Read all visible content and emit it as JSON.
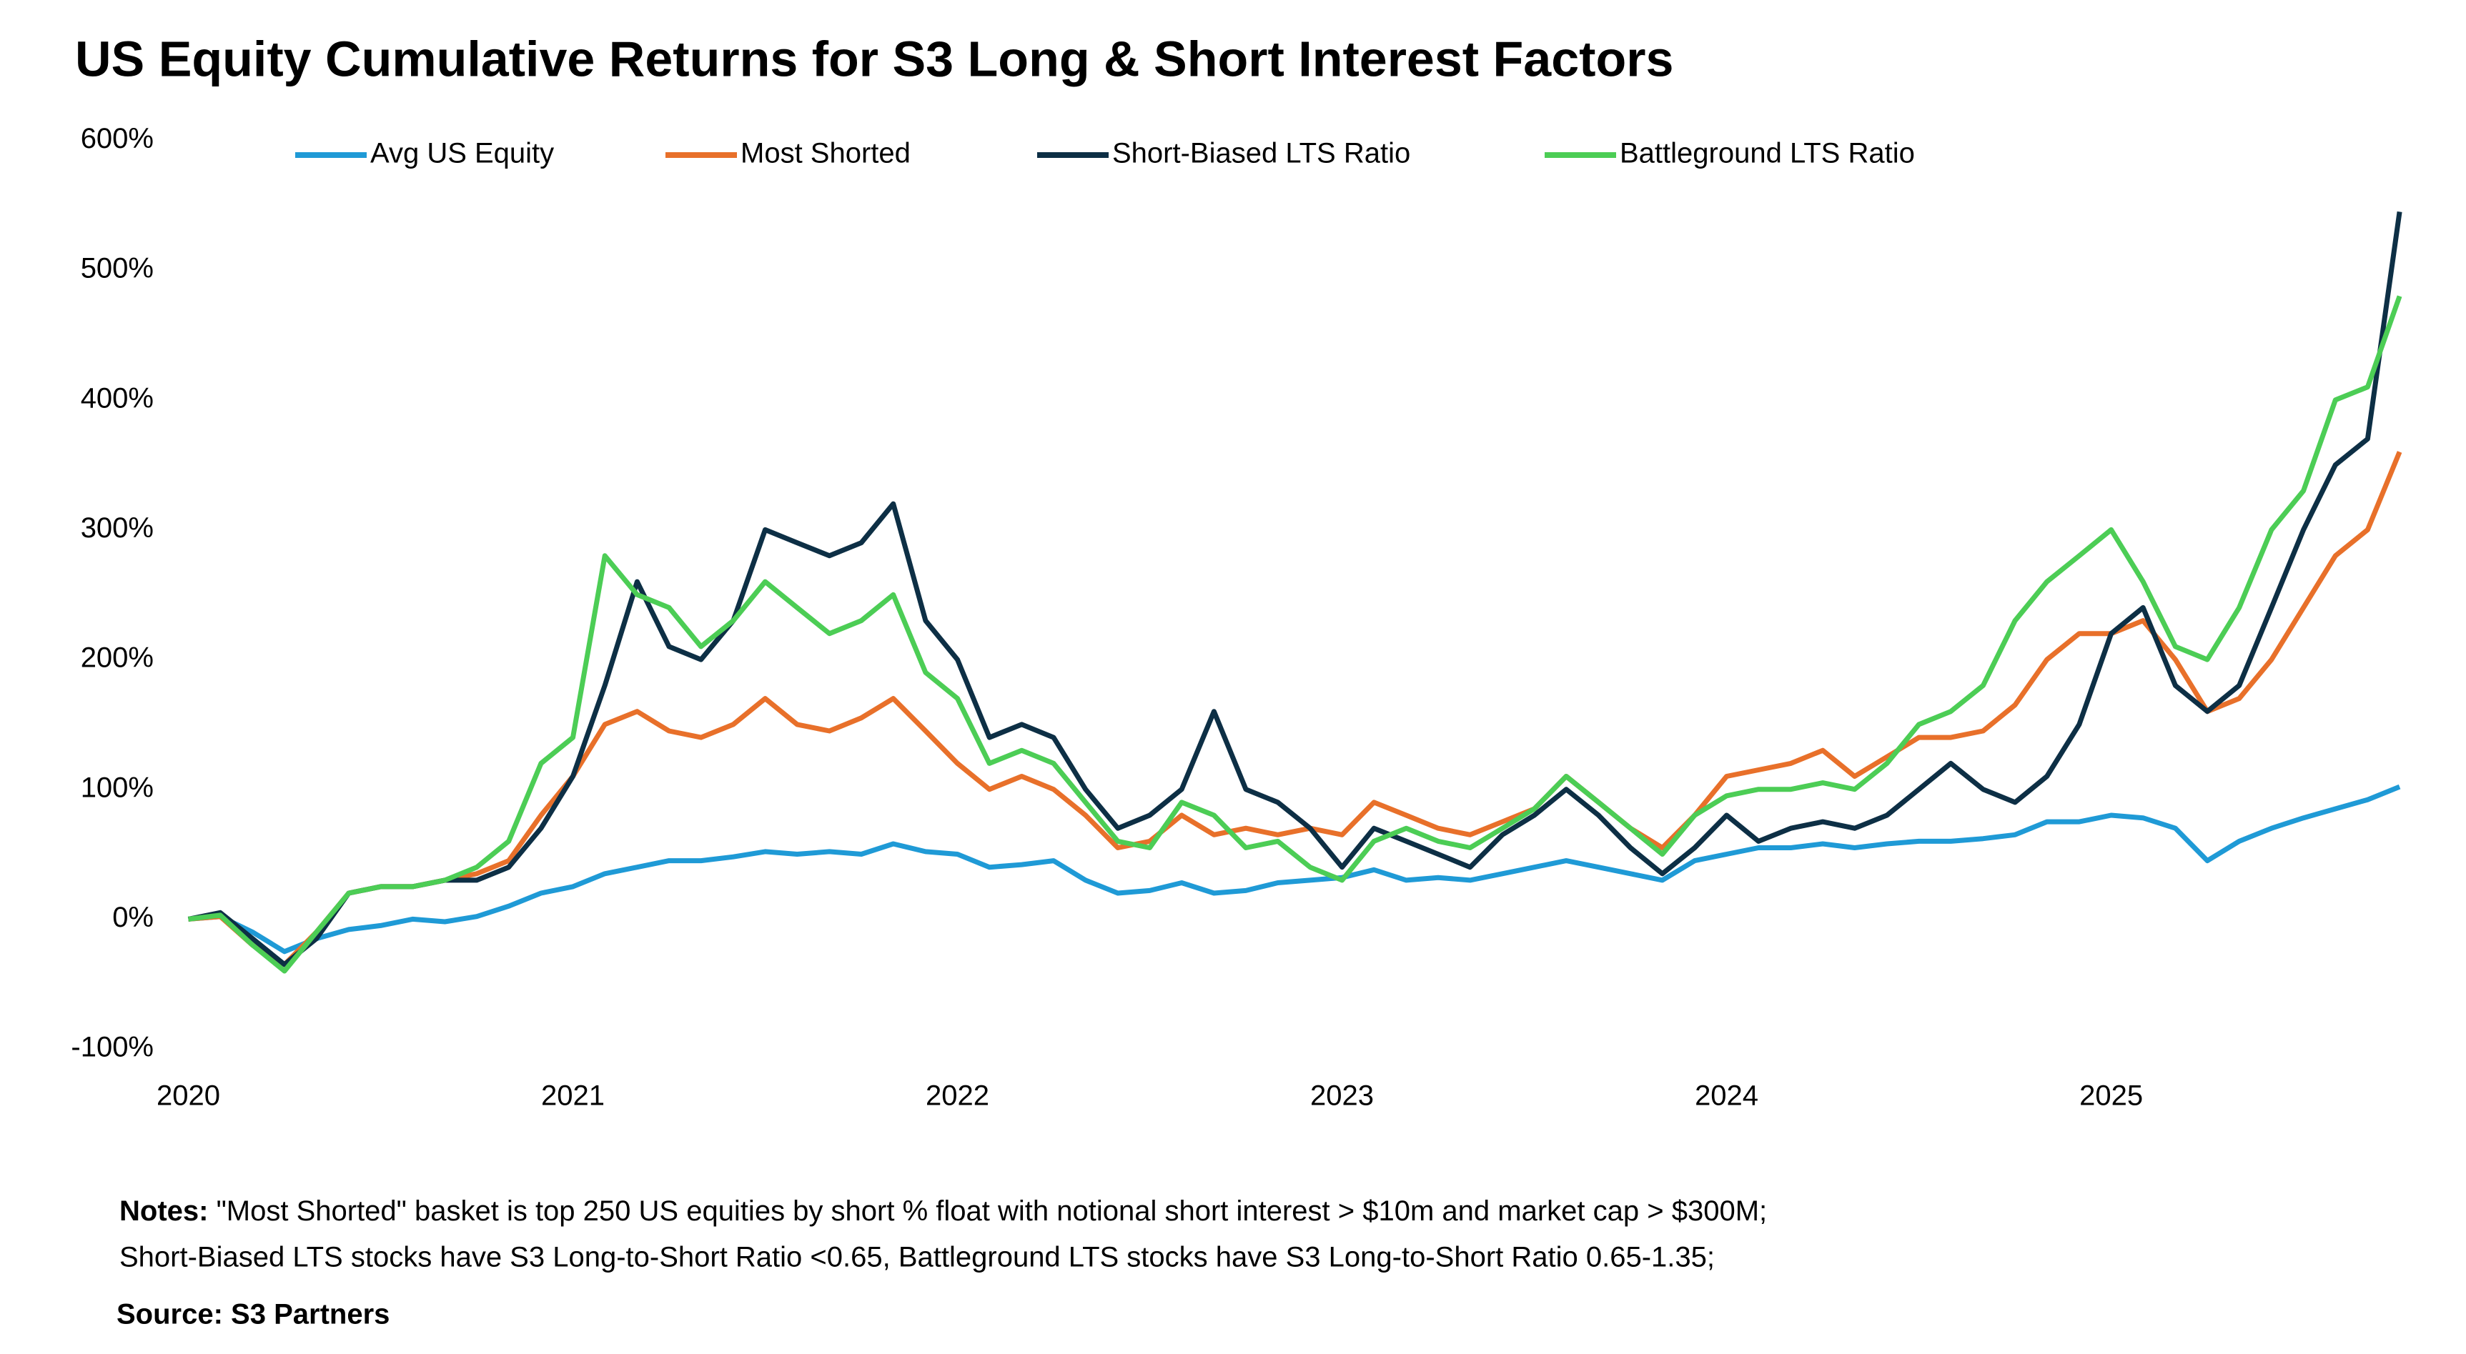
{
  "chart_data": {
    "type": "line",
    "title": "US Equity Cumulative Returns for S3 Long & Short Interest Factors",
    "x": [
      2020.0,
      2020.083,
      2020.167,
      2020.25,
      2020.333,
      2020.417,
      2020.5,
      2020.583,
      2020.667,
      2020.75,
      2020.833,
      2020.917,
      2021.0,
      2021.083,
      2021.167,
      2021.25,
      2021.333,
      2021.417,
      2021.5,
      2021.583,
      2021.667,
      2021.75,
      2021.833,
      2021.917,
      2022.0,
      2022.083,
      2022.167,
      2022.25,
      2022.333,
      2022.417,
      2022.5,
      2022.583,
      2022.667,
      2022.75,
      2022.833,
      2022.917,
      2023.0,
      2023.083,
      2023.167,
      2023.25,
      2023.333,
      2023.417,
      2023.5,
      2023.583,
      2023.667,
      2023.75,
      2023.833,
      2023.917,
      2024.0,
      2024.083,
      2024.167,
      2024.25,
      2024.333,
      2024.417,
      2024.5,
      2024.583,
      2024.667,
      2024.75,
      2024.833,
      2024.917,
      2025.0,
      2025.083,
      2025.167,
      2025.25,
      2025.333,
      2025.417,
      2025.5,
      2025.583,
      2025.667,
      2025.75
    ],
    "series": [
      {
        "name": "Avg US Equity",
        "color": "#1f9ad6",
        "values": [
          0,
          2,
          -10,
          -25,
          -15,
          -8,
          -5,
          0,
          -2,
          2,
          10,
          20,
          25,
          35,
          40,
          45,
          45,
          48,
          52,
          50,
          52,
          50,
          58,
          52,
          50,
          40,
          42,
          45,
          30,
          20,
          22,
          28,
          20,
          22,
          28,
          30,
          32,
          38,
          30,
          32,
          30,
          35,
          40,
          45,
          40,
          35,
          30,
          45,
          50,
          55,
          55,
          58,
          55,
          58,
          60,
          60,
          62,
          65,
          75,
          75,
          80,
          78,
          70,
          45,
          60,
          70,
          78,
          85,
          92,
          102
        ]
      },
      {
        "name": "Most Shorted",
        "color": "#e8702a",
        "values": [
          0,
          2,
          -20,
          -35,
          -10,
          20,
          25,
          25,
          30,
          35,
          45,
          80,
          110,
          150,
          160,
          145,
          140,
          150,
          170,
          150,
          145,
          155,
          170,
          145,
          120,
          100,
          110,
          100,
          80,
          55,
          60,
          80,
          65,
          70,
          65,
          70,
          65,
          90,
          80,
          70,
          65,
          75,
          85,
          110,
          90,
          70,
          55,
          80,
          110,
          115,
          120,
          130,
          110,
          125,
          140,
          140,
          145,
          165,
          200,
          220,
          220,
          230,
          200,
          160,
          170,
          200,
          240,
          280,
          300,
          360
        ]
      },
      {
        "name": "Short-Biased LTS Ratio",
        "color": "#0d2f45",
        "values": [
          0,
          5,
          -15,
          -35,
          -15,
          20,
          25,
          25,
          30,
          30,
          40,
          70,
          110,
          180,
          260,
          210,
          200,
          230,
          300,
          290,
          280,
          290,
          320,
          230,
          200,
          140,
          150,
          140,
          100,
          70,
          80,
          100,
          160,
          100,
          90,
          70,
          40,
          70,
          60,
          50,
          40,
          65,
          80,
          100,
          80,
          55,
          35,
          55,
          80,
          60,
          70,
          75,
          70,
          80,
          100,
          120,
          100,
          90,
          110,
          150,
          220,
          240,
          180,
          160,
          180,
          240,
          300,
          350,
          370,
          545
        ]
      },
      {
        "name": "Battleground LTS Ratio",
        "color": "#4ccd55",
        "values": [
          0,
          3,
          -20,
          -40,
          -10,
          20,
          25,
          25,
          30,
          40,
          60,
          120,
          140,
          280,
          250,
          240,
          210,
          230,
          260,
          240,
          220,
          230,
          250,
          190,
          170,
          120,
          130,
          120,
          90,
          60,
          55,
          90,
          80,
          55,
          60,
          40,
          30,
          60,
          70,
          60,
          55,
          70,
          85,
          110,
          90,
          70,
          50,
          80,
          95,
          100,
          100,
          105,
          100,
          120,
          150,
          160,
          180,
          230,
          260,
          280,
          300,
          260,
          210,
          200,
          240,
          300,
          330,
          400,
          410,
          480
        ]
      }
    ],
    "xlim": [
      2020,
      2025.8
    ],
    "xticks": [
      2020,
      2021,
      2022,
      2023,
      2024,
      2025
    ],
    "ylim": [
      -100,
      600
    ],
    "yticks": [
      {
        "value": -100,
        "label": "-100%"
      },
      {
        "value": 0,
        "label": "0%"
      },
      {
        "value": 100,
        "label": "100%"
      },
      {
        "value": 200,
        "label": "200%"
      },
      {
        "value": 300,
        "label": "300%"
      },
      {
        "value": 400,
        "label": "400%"
      },
      {
        "value": 500,
        "label": "500%"
      },
      {
        "value": 600,
        "label": "600%"
      }
    ],
    "grid": false,
    "legend": "top",
    "notes": {
      "label": "Notes:",
      "lines": [
        "\"Most Shorted\" basket is top 250 US equities by short % float with notional short interest > $10m and market cap > $300M;",
        "Short-Biased LTS stocks have S3 Long-to-Short Ratio <0.65, Battleground LTS stocks have S3 Long-to-Short Ratio 0.65-1.35;"
      ]
    },
    "source": "Source: S3 Partners"
  }
}
